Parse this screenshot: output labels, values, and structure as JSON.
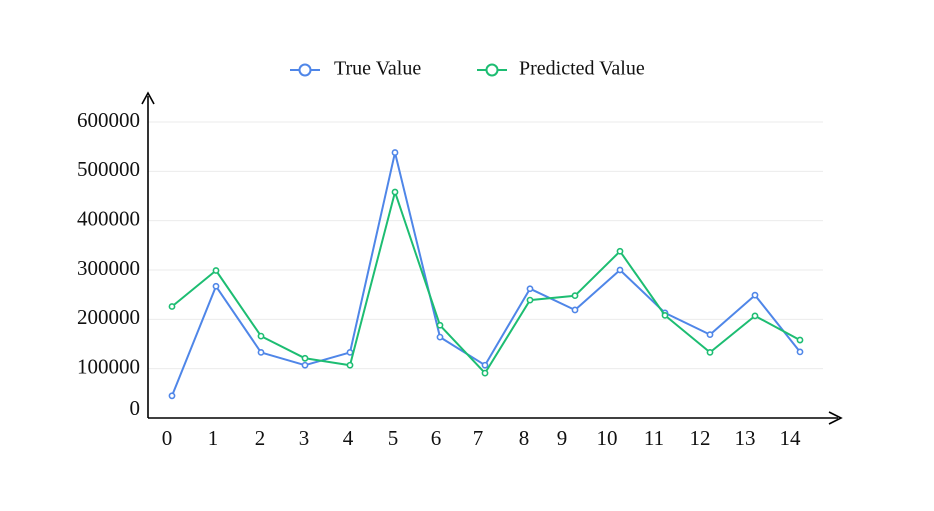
{
  "chart_data": {
    "type": "line",
    "x": [
      0,
      1,
      2,
      3,
      4,
      5,
      6,
      7,
      8,
      9,
      10,
      11,
      12,
      13,
      14
    ],
    "x_tick_labels": [
      "0",
      "1",
      "2",
      "3",
      "4",
      "5",
      "6",
      "7",
      "8",
      "9",
      "10",
      "11",
      "12",
      "13",
      "14"
    ],
    "y_tick_labels": [
      "0",
      "100000",
      "200000",
      "300000",
      "400000",
      "500000",
      "600000"
    ],
    "y_ticks": [
      0,
      100000,
      200000,
      300000,
      400000,
      500000,
      600000
    ],
    "ylim": [
      0,
      600000
    ],
    "grid": true,
    "legend_position": "top-center",
    "series": [
      {
        "name": "True  Value",
        "color": "#4f86e8",
        "values": [
          45000,
          267000,
          133000,
          107000,
          133000,
          538000,
          164000,
          107000,
          262000,
          219000,
          300000,
          213000,
          169000,
          249000,
          134000
        ]
      },
      {
        "name": "Predicted  Value",
        "color": "#1dbd72",
        "values": [
          226000,
          299000,
          166000,
          121000,
          107000,
          458000,
          188000,
          91000,
          239000,
          248000,
          338000,
          208000,
          133000,
          207000,
          158000
        ]
      }
    ]
  }
}
